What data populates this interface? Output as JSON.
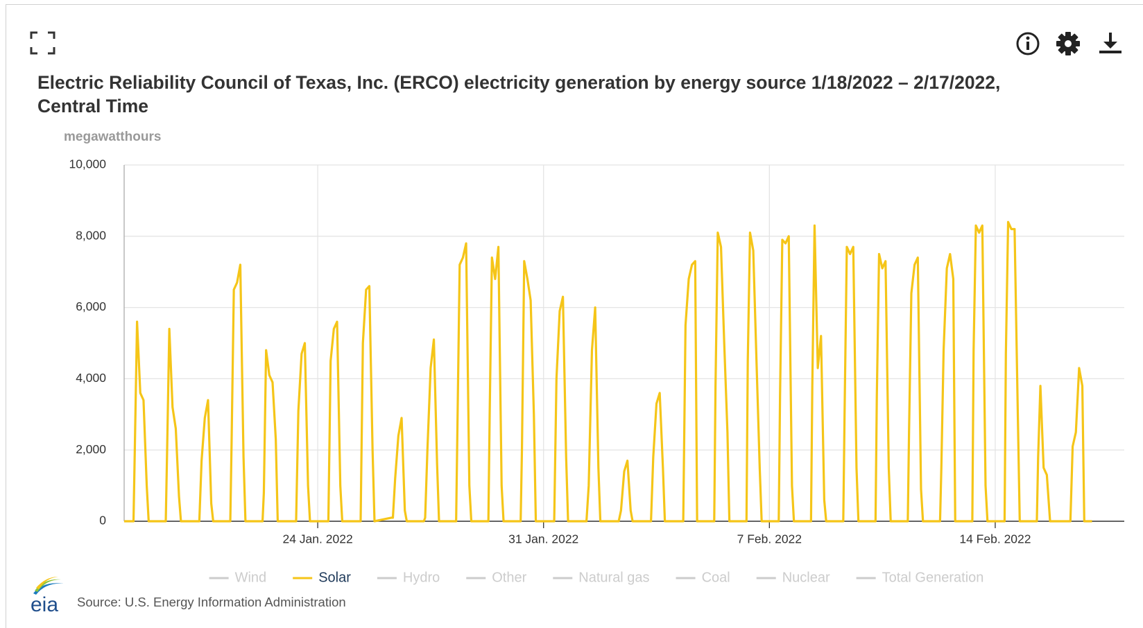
{
  "chart_data": {
    "type": "line",
    "title": "Electric Reliability Council of Texas, Inc. (ERCO) electricity generation by energy source 1/18/2022 – 2/17/2022, Central Time",
    "y_label": "megawatthours",
    "source": "Source: U.S. Energy Information Administration",
    "logo": "eia",
    "xlim": [
      0,
      31
    ],
    "xticks": [
      {
        "value": 6,
        "label": "24 Jan. 2022"
      },
      {
        "value": 13,
        "label": "31 Jan. 2022"
      },
      {
        "value": 20,
        "label": "7 Feb. 2022"
      },
      {
        "value": 27,
        "label": "14 Feb. 2022"
      }
    ],
    "ylim": [
      0,
      10000
    ],
    "yticks": [
      {
        "value": 0,
        "label": "0"
      },
      {
        "value": 2000,
        "label": "2,000"
      },
      {
        "value": 4000,
        "label": "4,000"
      },
      {
        "value": 6000,
        "label": "6,000"
      },
      {
        "value": 8000,
        "label": "8,000"
      },
      {
        "value": 10000,
        "label": "10,000"
      }
    ],
    "grid": true,
    "legend_position": "bottom",
    "inactive_color": "#cccccc",
    "x": [
      0,
      0.29,
      0.33,
      0.4,
      0.5,
      0.6,
      0.7,
      0.76,
      1.29,
      1.33,
      1.4,
      1.5,
      1.6,
      1.7,
      1.76,
      2.29,
      2.33,
      2.4,
      2.5,
      2.6,
      2.7,
      2.76,
      3.29,
      3.33,
      3.4,
      3.5,
      3.6,
      3.7,
      3.76,
      4.29,
      4.33,
      4.4,
      4.5,
      4.6,
      4.7,
      4.76,
      5.29,
      5.33,
      5.4,
      5.5,
      5.6,
      5.7,
      5.76,
      6.29,
      6.33,
      6.4,
      6.5,
      6.6,
      6.7,
      6.76,
      7.29,
      7.33,
      7.4,
      7.5,
      7.6,
      7.7,
      7.76,
      8.29,
      8.33,
      8.4,
      8.5,
      8.6,
      8.7,
      8.76,
      9.29,
      9.33,
      9.4,
      9.5,
      9.6,
      9.7,
      9.76,
      10.29,
      10.33,
      10.4,
      10.5,
      10.6,
      10.7,
      10.76,
      11.29,
      11.33,
      11.4,
      11.5,
      11.6,
      11.7,
      11.76,
      12.29,
      12.33,
      12.4,
      12.5,
      12.6,
      12.7,
      12.76,
      13.29,
      13.33,
      13.4,
      13.5,
      13.6,
      13.7,
      13.76,
      14.29,
      14.33,
      14.4,
      14.5,
      14.6,
      14.7,
      14.76,
      15.29,
      15.33,
      15.4,
      15.5,
      15.6,
      15.7,
      15.76,
      16.29,
      16.33,
      16.4,
      16.5,
      16.6,
      16.7,
      16.76,
      17.29,
      17.33,
      17.4,
      17.5,
      17.6,
      17.7,
      17.76,
      18.29,
      18.33,
      18.4,
      18.5,
      18.6,
      18.7,
      18.76,
      19.29,
      19.33,
      19.4,
      19.5,
      19.6,
      19.7,
      19.76,
      20.29,
      20.33,
      20.4,
      20.5,
      20.6,
      20.7,
      20.76,
      21.29,
      21.33,
      21.4,
      21.5,
      21.6,
      21.7,
      21.76,
      22.29,
      22.33,
      22.4,
      22.5,
      22.6,
      22.7,
      22.76,
      23.29,
      23.33,
      23.4,
      23.5,
      23.6,
      23.7,
      23.76,
      24.29,
      24.33,
      24.4,
      24.5,
      24.6,
      24.7,
      24.76,
      25.29,
      25.33,
      25.4,
      25.5,
      25.6,
      25.7,
      25.76,
      26.29,
      26.33,
      26.4,
      26.5,
      26.6,
      26.7,
      26.76,
      27.29,
      27.33,
      27.4,
      27.5,
      27.6,
      27.7,
      27.76,
      28.29,
      28.33,
      28.4,
      28.5,
      28.6,
      28.7,
      28.76,
      29.29,
      29.33,
      29.4,
      29.5,
      29.6,
      29.7,
      29.76,
      30
    ],
    "series": [
      {
        "name": "Wind",
        "visible": false,
        "values": null
      },
      {
        "name": "Solar",
        "visible": true,
        "color": "#f5c518",
        "values": [
          0,
          0,
          2000,
          5600,
          3600,
          3400,
          1000,
          0,
          0,
          1900,
          5400,
          3200,
          2600,
          700,
          0,
          0,
          0,
          1700,
          2900,
          3400,
          500,
          0,
          0,
          2200,
          6500,
          6700,
          7200,
          1800,
          0,
          0,
          800,
          4800,
          4100,
          3900,
          2300,
          0,
          0,
          0,
          3100,
          4700,
          5000,
          1000,
          0,
          0,
          0,
          4500,
          5400,
          5600,
          1000,
          0,
          0,
          0,
          5000,
          6500,
          6600,
          2000,
          0,
          100,
          100,
          1200,
          2400,
          2900,
          300,
          0,
          0,
          100,
          2000,
          4300,
          5100,
          1600,
          0,
          0,
          2600,
          7200,
          7400,
          7800,
          1000,
          0,
          0,
          3000,
          7400,
          6800,
          7700,
          1000,
          0,
          0,
          2000,
          7300,
          6800,
          6200,
          3000,
          0,
          0,
          0,
          4000,
          5900,
          6300,
          1800,
          0,
          0,
          0,
          1000,
          4800,
          6000,
          1500,
          0,
          0,
          0,
          300,
          1400,
          1700,
          300,
          0,
          0,
          0,
          1800,
          3300,
          3600,
          1500,
          0,
          0,
          0,
          5500,
          6800,
          7200,
          7300,
          0,
          0,
          3800,
          8100,
          7700,
          5000,
          2500,
          0,
          0,
          4500,
          8100,
          7600,
          4500,
          1500,
          0,
          0,
          3500,
          7900,
          7800,
          8000,
          1000,
          0,
          0,
          3800,
          8300,
          4300,
          5200,
          600,
          0,
          0,
          3000,
          7700,
          7500,
          7700,
          1500,
          0,
          0,
          3500,
          7500,
          7100,
          7300,
          1500,
          0,
          0,
          2600,
          6400,
          7200,
          7400,
          900,
          0,
          0,
          1500,
          4800,
          7100,
          7500,
          6800,
          0,
          0,
          4800,
          8300,
          8100,
          8300,
          1000,
          0,
          0,
          4700,
          8400,
          8200,
          8200,
          3000,
          0,
          0,
          1800,
          3800,
          1500,
          1300,
          0,
          0,
          0,
          0,
          2100,
          2500,
          4300,
          3800,
          0,
          0
        ]
      },
      {
        "name": "Hydro",
        "visible": false,
        "values": null
      },
      {
        "name": "Other",
        "visible": false,
        "values": null
      },
      {
        "name": "Natural gas",
        "visible": false,
        "values": null
      },
      {
        "name": "Coal",
        "visible": false,
        "values": null
      },
      {
        "name": "Nuclear",
        "visible": false,
        "values": null
      },
      {
        "name": "Total Generation",
        "visible": false,
        "values": null
      }
    ]
  }
}
